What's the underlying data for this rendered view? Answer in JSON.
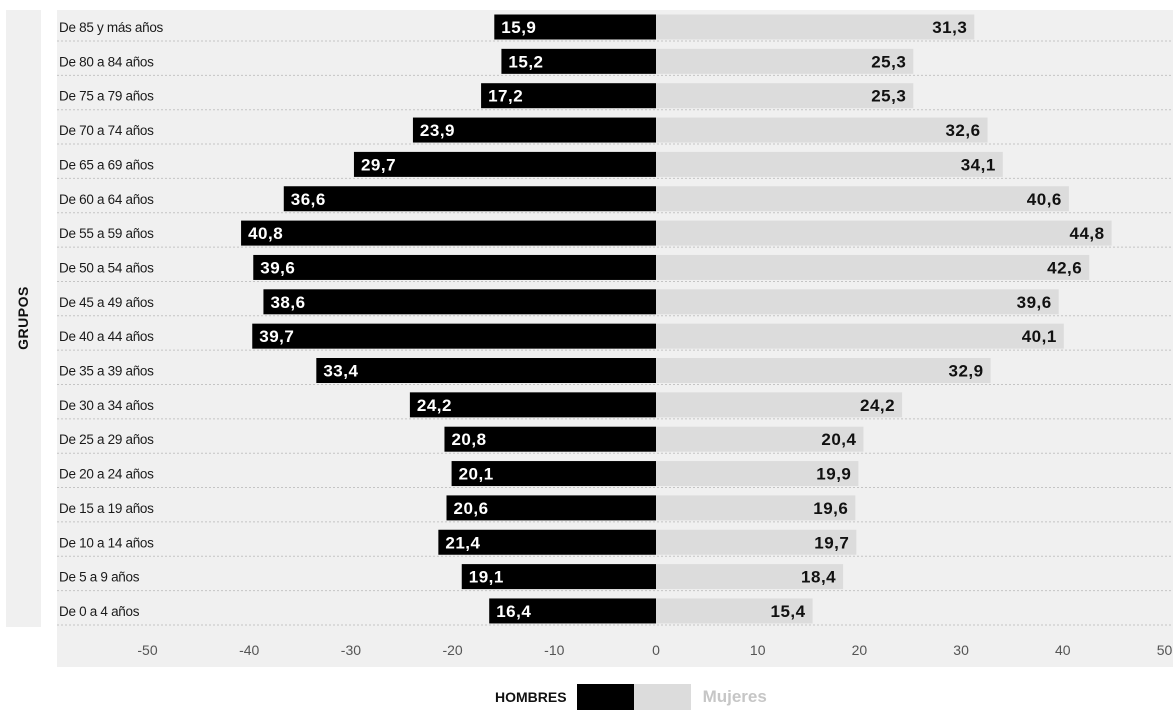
{
  "axis_title": "GRUPOS",
  "legend": {
    "hombres": "HOMBRES",
    "mujeres": "Mujeres"
  },
  "colors": {
    "hombres": "#000000",
    "mujeres": "#dcdcdc",
    "panel": "#f0f0f0"
  },
  "chart_data": {
    "type": "bar",
    "orientation": "horizontal",
    "layout": "population-pyramid",
    "xlim": [
      -50,
      50
    ],
    "x_ticks": [
      "-50",
      "-40",
      "-30",
      "-20",
      "-10",
      "0",
      "10",
      "20",
      "30",
      "40",
      "50"
    ],
    "grid": false,
    "legend_position": "bottom",
    "categories": [
      "De 85 y más años",
      "De 80 a 84 años",
      "De 75 a 79 años",
      "De 70 a 74 años",
      "De 65 a 69 años",
      "De 60 a 64 años",
      "De 55 a 59 años",
      "De 50 a 54 años",
      "De 45 a 49 años",
      "De 40 a 44 años",
      "De 35 a 39 años",
      "De 30 a 34 años",
      "De 25 a 29 años",
      "De 20 a 24 años",
      "De 15 a 19 años",
      "De 10 a 14 años",
      "De 5 a 9 años",
      "De 0 a 4 años"
    ],
    "series": [
      {
        "name": "HOMBRES",
        "values": [
          15.9,
          15.2,
          17.2,
          23.9,
          29.7,
          36.6,
          40.8,
          39.6,
          38.6,
          39.7,
          33.4,
          24.2,
          20.8,
          20.1,
          20.6,
          21.4,
          19.1,
          16.4
        ],
        "labels": [
          "15,9",
          "15,2",
          "17,2",
          "23,9",
          "29,7",
          "36,6",
          "40,8",
          "39,6",
          "38,6",
          "39,7",
          "33,4",
          "24,2",
          "20,8",
          "20,1",
          "20,6",
          "21,4",
          "19,1",
          "16,4"
        ]
      },
      {
        "name": "Mujeres",
        "values": [
          31.3,
          25.3,
          25.3,
          32.6,
          34.1,
          40.6,
          44.8,
          42.6,
          39.6,
          40.1,
          32.9,
          24.2,
          20.4,
          19.9,
          19.6,
          19.7,
          18.4,
          15.4
        ],
        "labels": [
          "31,3",
          "25,3",
          "25,3",
          "32,6",
          "34,1",
          "40,6",
          "44,8",
          "42,6",
          "39,6",
          "40,1",
          "32,9",
          "24,2",
          "20,4",
          "19,9",
          "19,6",
          "19,7",
          "18,4",
          "15,4"
        ]
      }
    ]
  }
}
